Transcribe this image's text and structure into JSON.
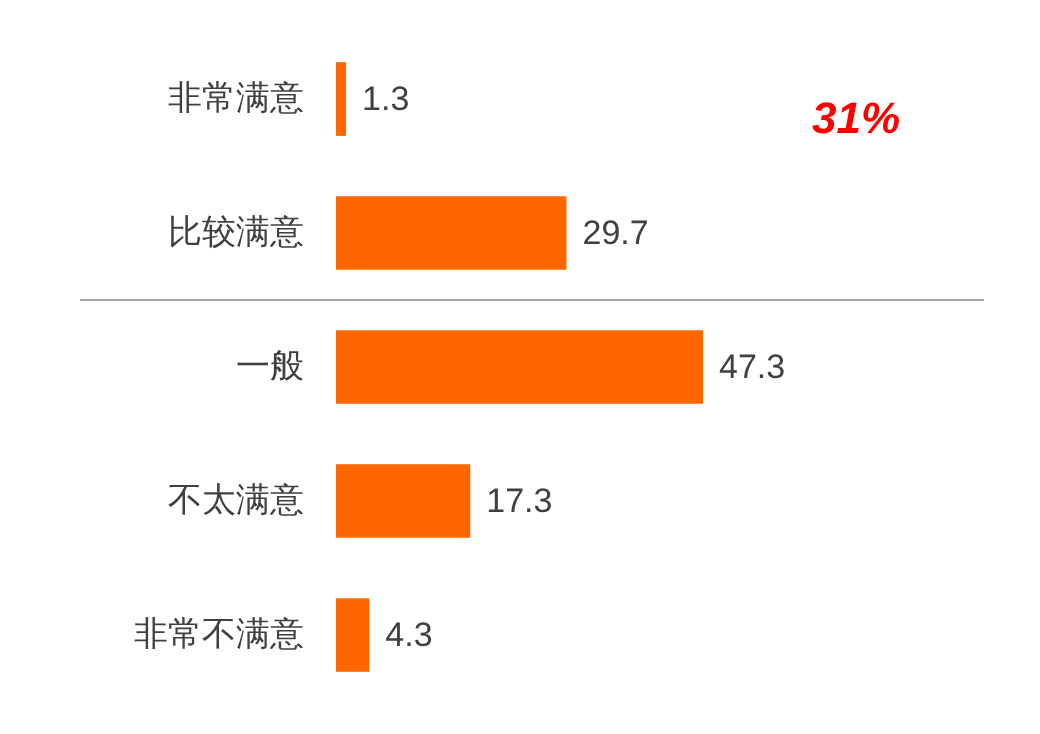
{
  "chart_data": {
    "type": "bar",
    "orientation": "horizontal",
    "categories": [
      "非常满意",
      "比较满意",
      "一般",
      "不太满意",
      "非常不满意"
    ],
    "values": [
      1.3,
      29.7,
      47.3,
      17.3,
      4.3
    ],
    "color": "#ff6600",
    "data_labels": true,
    "grid": false,
    "annotations": [
      "31%"
    ]
  }
}
